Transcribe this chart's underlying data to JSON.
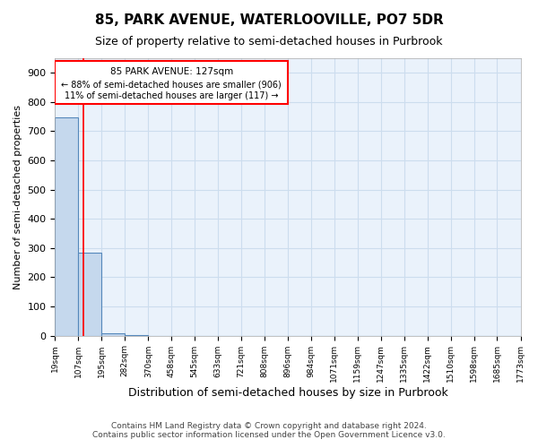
{
  "title": "85, PARK AVENUE, WATERLOOVILLE, PO7 5DR",
  "subtitle": "Size of property relative to semi-detached houses in Purbrook",
  "xlabel": "Distribution of semi-detached houses by size in Purbrook",
  "ylabel": "Number of semi-detached properties",
  "property_size": 127,
  "property_label": "85 PARK AVENUE: 127sqm",
  "pct_smaller": 88,
  "count_smaller": 906,
  "pct_larger": 11,
  "count_larger": 117,
  "bin_edges": [
    19,
    107,
    195,
    282,
    370,
    458,
    545,
    633,
    721,
    808,
    896,
    984,
    1071,
    1159,
    1247,
    1335,
    1422,
    1510,
    1598,
    1685,
    1773
  ],
  "bin_labels": [
    "19sqm",
    "107sqm",
    "195sqm",
    "282sqm",
    "370sqm",
    "458sqm",
    "545sqm",
    "633sqm",
    "721sqm",
    "808sqm",
    "896sqm",
    "984sqm",
    "1071sqm",
    "1159sqm",
    "1247sqm",
    "1335sqm",
    "1422sqm",
    "1510sqm",
    "1598sqm",
    "1685sqm",
    "1773sqm"
  ],
  "bar_heights": [
    748,
    285,
    7,
    1,
    0,
    0,
    0,
    0,
    0,
    0,
    0,
    0,
    0,
    0,
    0,
    0,
    0,
    0,
    0,
    0
  ],
  "bar_color": "#c5d8ed",
  "bar_edge_color": "#5588bb",
  "ylim": [
    0,
    950
  ],
  "yticks": [
    0,
    100,
    200,
    300,
    400,
    500,
    600,
    700,
    800,
    900
  ],
  "grid_color": "#ccddee",
  "background_color": "#eaf2fb",
  "annotation_box_color": "#ff0000",
  "footer": "Contains HM Land Registry data © Crown copyright and database right 2024.\nContains public sector information licensed under the Open Government Licence v3.0."
}
